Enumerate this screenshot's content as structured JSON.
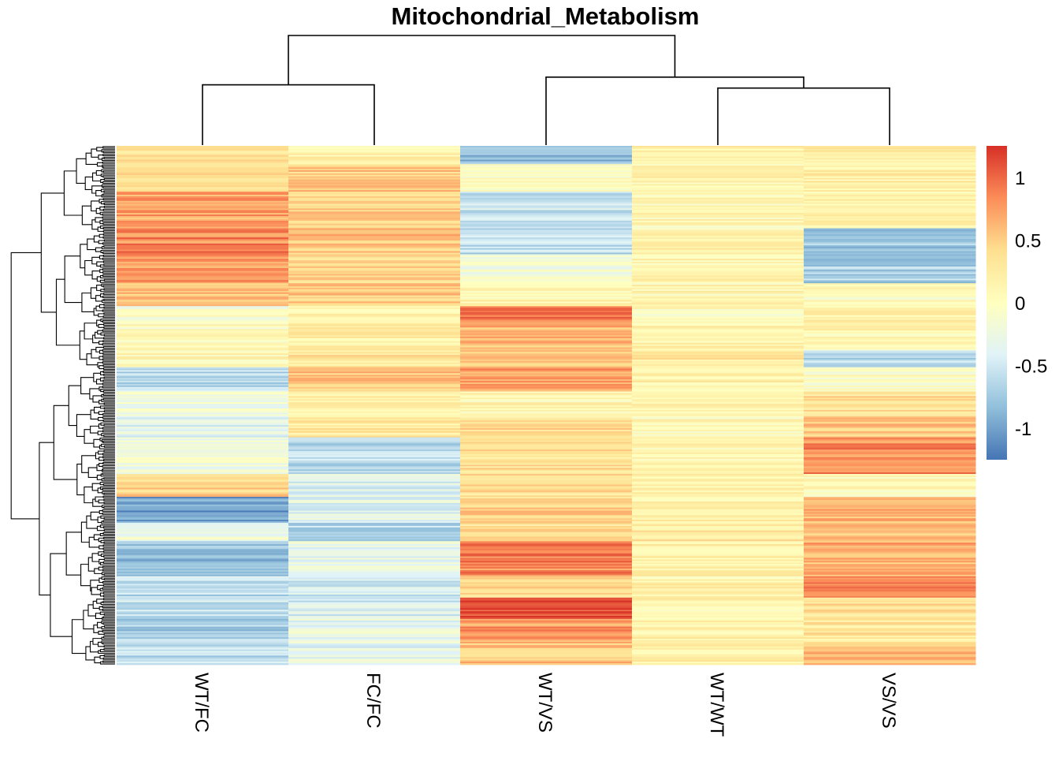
{
  "chart_data": {
    "type": "heatmap",
    "title": "Mitochondrial_Metabolism",
    "columns": [
      "WT/FC",
      "FC/FC",
      "WT/VS",
      "WT/WT",
      "VS/VS"
    ],
    "column_dendrogram": {
      "merges": [
        {
          "left": "WT/FC",
          "right": "FC/FC",
          "height": 0.55
        },
        {
          "left": "WT/WT",
          "right": "VS/VS",
          "height": 0.52
        },
        {
          "left": "WT/VS",
          "right": "WT/WT+VS/VS",
          "height": 0.62
        },
        {
          "left": "WT/FC+FC/FC",
          "right": "WT/VS+WT/WT+VS/VS",
          "height": 1.0
        }
      ]
    },
    "row_count": 340,
    "row_blocks": [
      {
        "fraction": 0.035,
        "values": [
          0.35,
          0.15,
          -0.85,
          0.15,
          0.25
        ]
      },
      {
        "fraction": 0.055,
        "values": [
          0.4,
          0.5,
          0.0,
          0.15,
          0.2
        ]
      },
      {
        "fraction": 0.07,
        "values": [
          0.7,
          0.45,
          -0.5,
          0.1,
          0.15
        ]
      },
      {
        "fraction": 0.05,
        "values": [
          0.85,
          0.55,
          -0.6,
          0.15,
          -0.75
        ]
      },
      {
        "fraction": 0.055,
        "values": [
          0.75,
          0.45,
          -0.15,
          0.15,
          -0.7
        ]
      },
      {
        "fraction": 0.045,
        "values": [
          0.6,
          0.5,
          0.15,
          0.1,
          0.05
        ]
      },
      {
        "fraction": 0.035,
        "values": [
          -0.1,
          0.15,
          0.9,
          0.05,
          0.15
        ]
      },
      {
        "fraction": 0.05,
        "values": [
          0.0,
          0.2,
          0.6,
          0.15,
          0.1
        ]
      },
      {
        "fraction": 0.035,
        "values": [
          0.1,
          0.3,
          0.5,
          0.3,
          -0.6
        ]
      },
      {
        "fraction": 0.045,
        "values": [
          -0.6,
          0.55,
          0.75,
          0.2,
          0.0
        ]
      },
      {
        "fraction": 0.05,
        "values": [
          -0.2,
          0.2,
          0.1,
          0.15,
          0.35
        ]
      },
      {
        "fraction": 0.04,
        "values": [
          -0.4,
          0.25,
          0.45,
          0.05,
          0.5
        ]
      },
      {
        "fraction": 0.07,
        "values": [
          -0.2,
          -0.6,
          0.35,
          0.1,
          0.85
        ]
      },
      {
        "fraction": 0.045,
        "values": [
          0.45,
          -0.4,
          0.35,
          0.15,
          0.05
        ]
      },
      {
        "fraction": 0.05,
        "values": [
          -1.0,
          -0.35,
          0.45,
          0.2,
          0.65
        ]
      },
      {
        "fraction": 0.035,
        "values": [
          -0.2,
          -0.6,
          0.35,
          0.3,
          0.55
        ]
      },
      {
        "fraction": 0.07,
        "values": [
          -0.85,
          -0.3,
          0.85,
          0.2,
          0.65
        ]
      },
      {
        "fraction": 0.04,
        "values": [
          -0.6,
          -0.45,
          0.4,
          0.15,
          0.85
        ]
      },
      {
        "fraction": 0.04,
        "values": [
          -0.55,
          -0.45,
          1.15,
          0.15,
          0.35
        ]
      },
      {
        "fraction": 0.045,
        "values": [
          -0.7,
          -0.3,
          0.75,
          0.15,
          0.3
        ]
      },
      {
        "fraction": 0.045,
        "values": [
          -0.6,
          -0.35,
          0.55,
          0.2,
          0.6
        ]
      }
    ],
    "color_scale": {
      "min": -1.25,
      "max": 1.25,
      "stops": [
        "#4575b4",
        "#91bfdb",
        "#e0f3f8",
        "#ffffbf",
        "#fee090",
        "#fc8d59",
        "#d73027"
      ],
      "ticks": [
        1,
        0.5,
        0,
        -0.5,
        -1
      ],
      "tick_labels": [
        "1",
        "0.5",
        "0",
        "-0.5",
        "-1"
      ]
    },
    "row_dendrogram": true,
    "grid": false,
    "legend": "right"
  }
}
